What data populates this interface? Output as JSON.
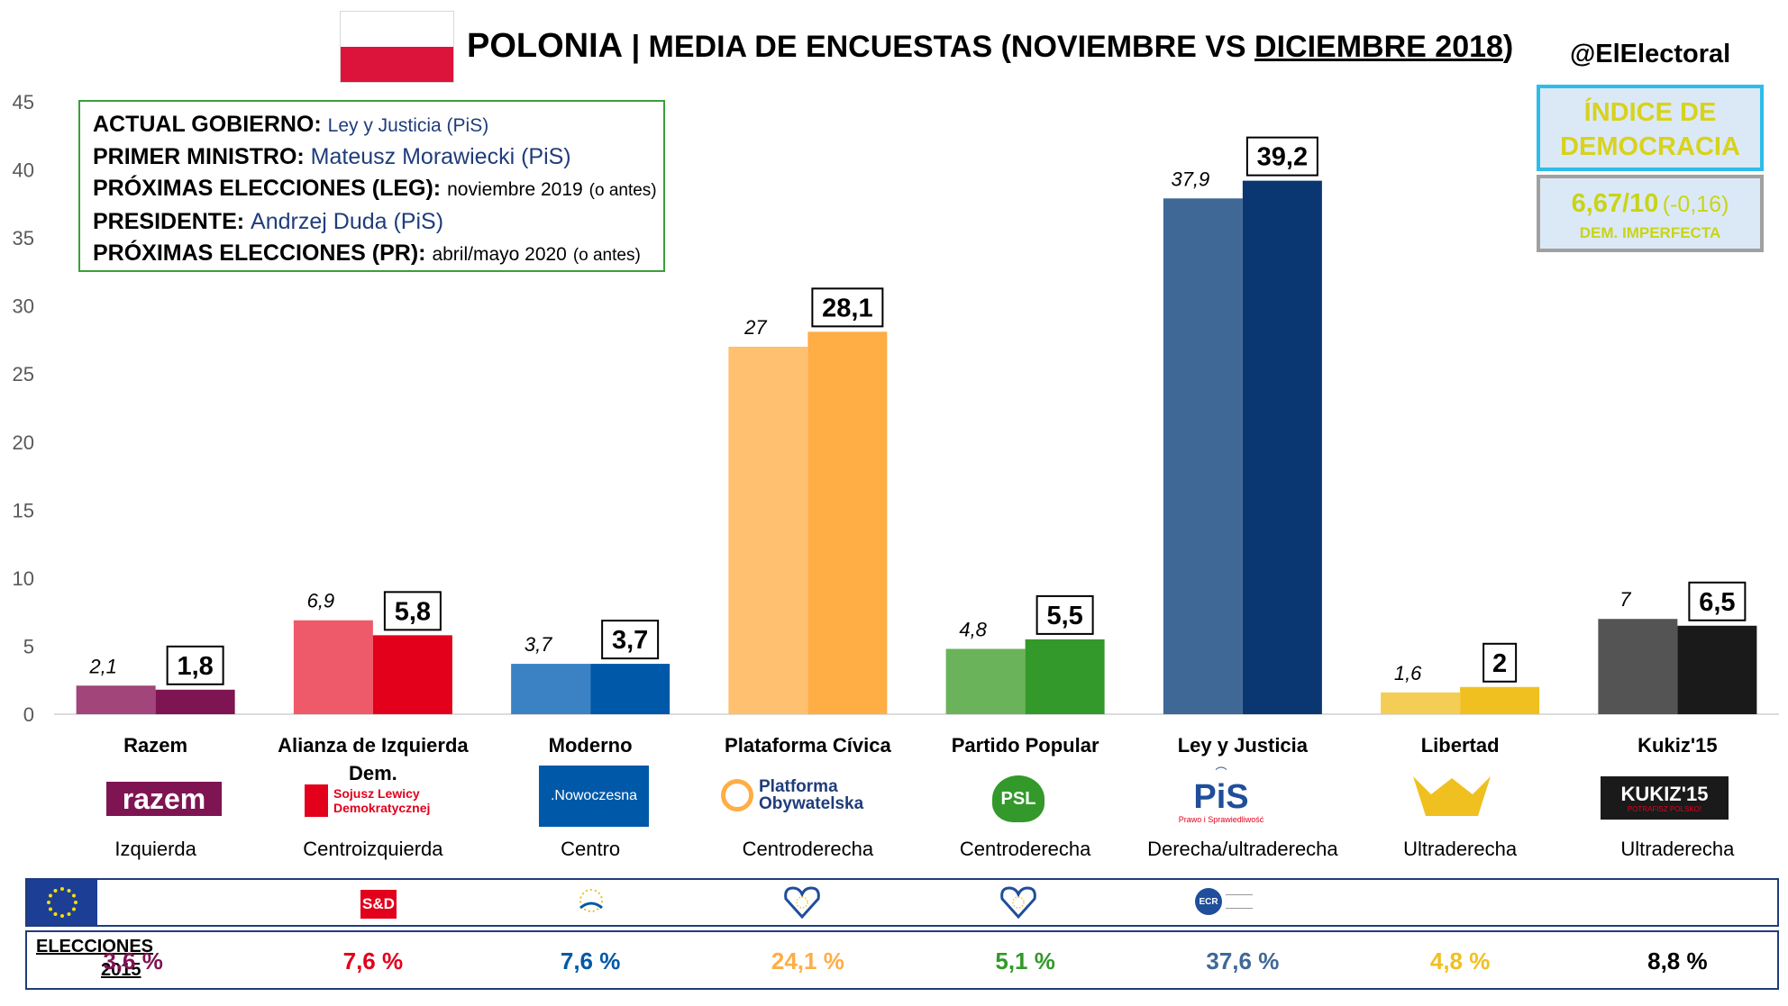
{
  "header": {
    "title_main": "POLONIA",
    "title_sep": " | ",
    "title_rest": "MEDIA DE ENCUESTAS (NOVIEMBRE VS ",
    "title_underlined": "DICIEMBRE 2018",
    "title_end": ")",
    "handle": "@ElElectoral"
  },
  "info": {
    "gov_label": "ACTUAL GOBIERNO:",
    "gov_value": "Ley y Justicia (PiS)",
    "pm_label": "PRIMER MINISTRO:",
    "pm_value": "Mateusz Morawiecki (PiS)",
    "leg_label": "PRÓXIMAS ELECCIONES (LEG):",
    "leg_value": "noviembre 2019",
    "leg_note": "(o antes)",
    "pres_label": "PRESIDENTE:",
    "pres_value": "Andrzej Duda (PiS)",
    "pr_label": "PRÓXIMAS ELECCIONES (PR):",
    "pr_value": "abril/mayo 2020",
    "pr_note": "(o antes)"
  },
  "democracy_index": {
    "title_line1": "ÍNDICE DE",
    "title_line2": "DEMOCRACIA",
    "score": "6,67/10",
    "change": "(-0,16)",
    "category": "DEM. IMPERFECTA"
  },
  "chart_data": {
    "type": "bar",
    "categories": [
      "Razem",
      "Alianza de Izquierda Dem.",
      "Moderno",
      "Plataforma Cívica",
      "Partido Popular",
      "Ley y Justicia",
      "Libertad",
      "Kukiz'15"
    ],
    "series": [
      {
        "values": [
          2.1,
          6.9,
          3.7,
          27,
          4.8,
          37.9,
          1.6,
          7
        ],
        "labels": [
          "2,1",
          "6,9",
          "3,7",
          "27",
          "4,8",
          "37,9",
          "1,6",
          "7"
        ]
      },
      {
        "values": [
          1.8,
          5.8,
          3.7,
          28.1,
          5.5,
          39.2,
          2,
          6.5
        ],
        "labels": [
          "1,8",
          "5,8",
          "3,7",
          "28,1",
          "5,5",
          "39,2",
          "2",
          "6,5"
        ]
      }
    ],
    "colors_nov": [
      "#a1457a",
      "#ee5a6a",
      "#3a82c4",
      "#ffc06f",
      "#6ab35a",
      "#3f6896",
      "#f3cd55",
      "#545454"
    ],
    "colors_dec": [
      "#7e1452",
      "#e2001a",
      "#0058a8",
      "#ffad45",
      "#33992a",
      "#0a3672",
      "#f0c020",
      "#1a1a1a"
    ],
    "ylim": [
      0,
      45
    ],
    "yticks": [
      0,
      5,
      10,
      15,
      20,
      25,
      30,
      35,
      40,
      45
    ],
    "grid": false
  },
  "ideologies": [
    "Izquierda",
    "Centroizquierda",
    "Centro",
    "Centroderecha",
    "Centroderecha",
    "Derecha/ultraderecha",
    "Ultraderecha",
    "Ultraderecha"
  ],
  "logos": {
    "razem": "razem",
    "sld_line1": "Sojusz Lewicy",
    "sld_line2": "Demokratycznej",
    "nowoczesna": ".Nowoczesna",
    "po_line1": "Platforma",
    "po_line2": "Obywatelska",
    "psl": "PSL",
    "pis": "PiS",
    "pis_sub": "Prawo i Sprawiedliwość",
    "kukiz": "KUKIZ'15",
    "kukiz_sub": "POTRAFISZ POLSKO!",
    "sd": "S&D",
    "ecr": "ECR"
  },
  "results_2015": {
    "label_line1": "ELECCIONES",
    "label_line2": "2015",
    "values": [
      "3,6 %",
      "7,6 %",
      "7,6 %",
      "24,1 %",
      "5,1 %",
      "37,6 %",
      "4,8 %",
      "8,8 %"
    ],
    "colors": [
      "#7e1452",
      "#e2001a",
      "#0058a8",
      "#ffad45",
      "#33992a",
      "#3f6896",
      "#f0c020",
      "#000000"
    ]
  }
}
